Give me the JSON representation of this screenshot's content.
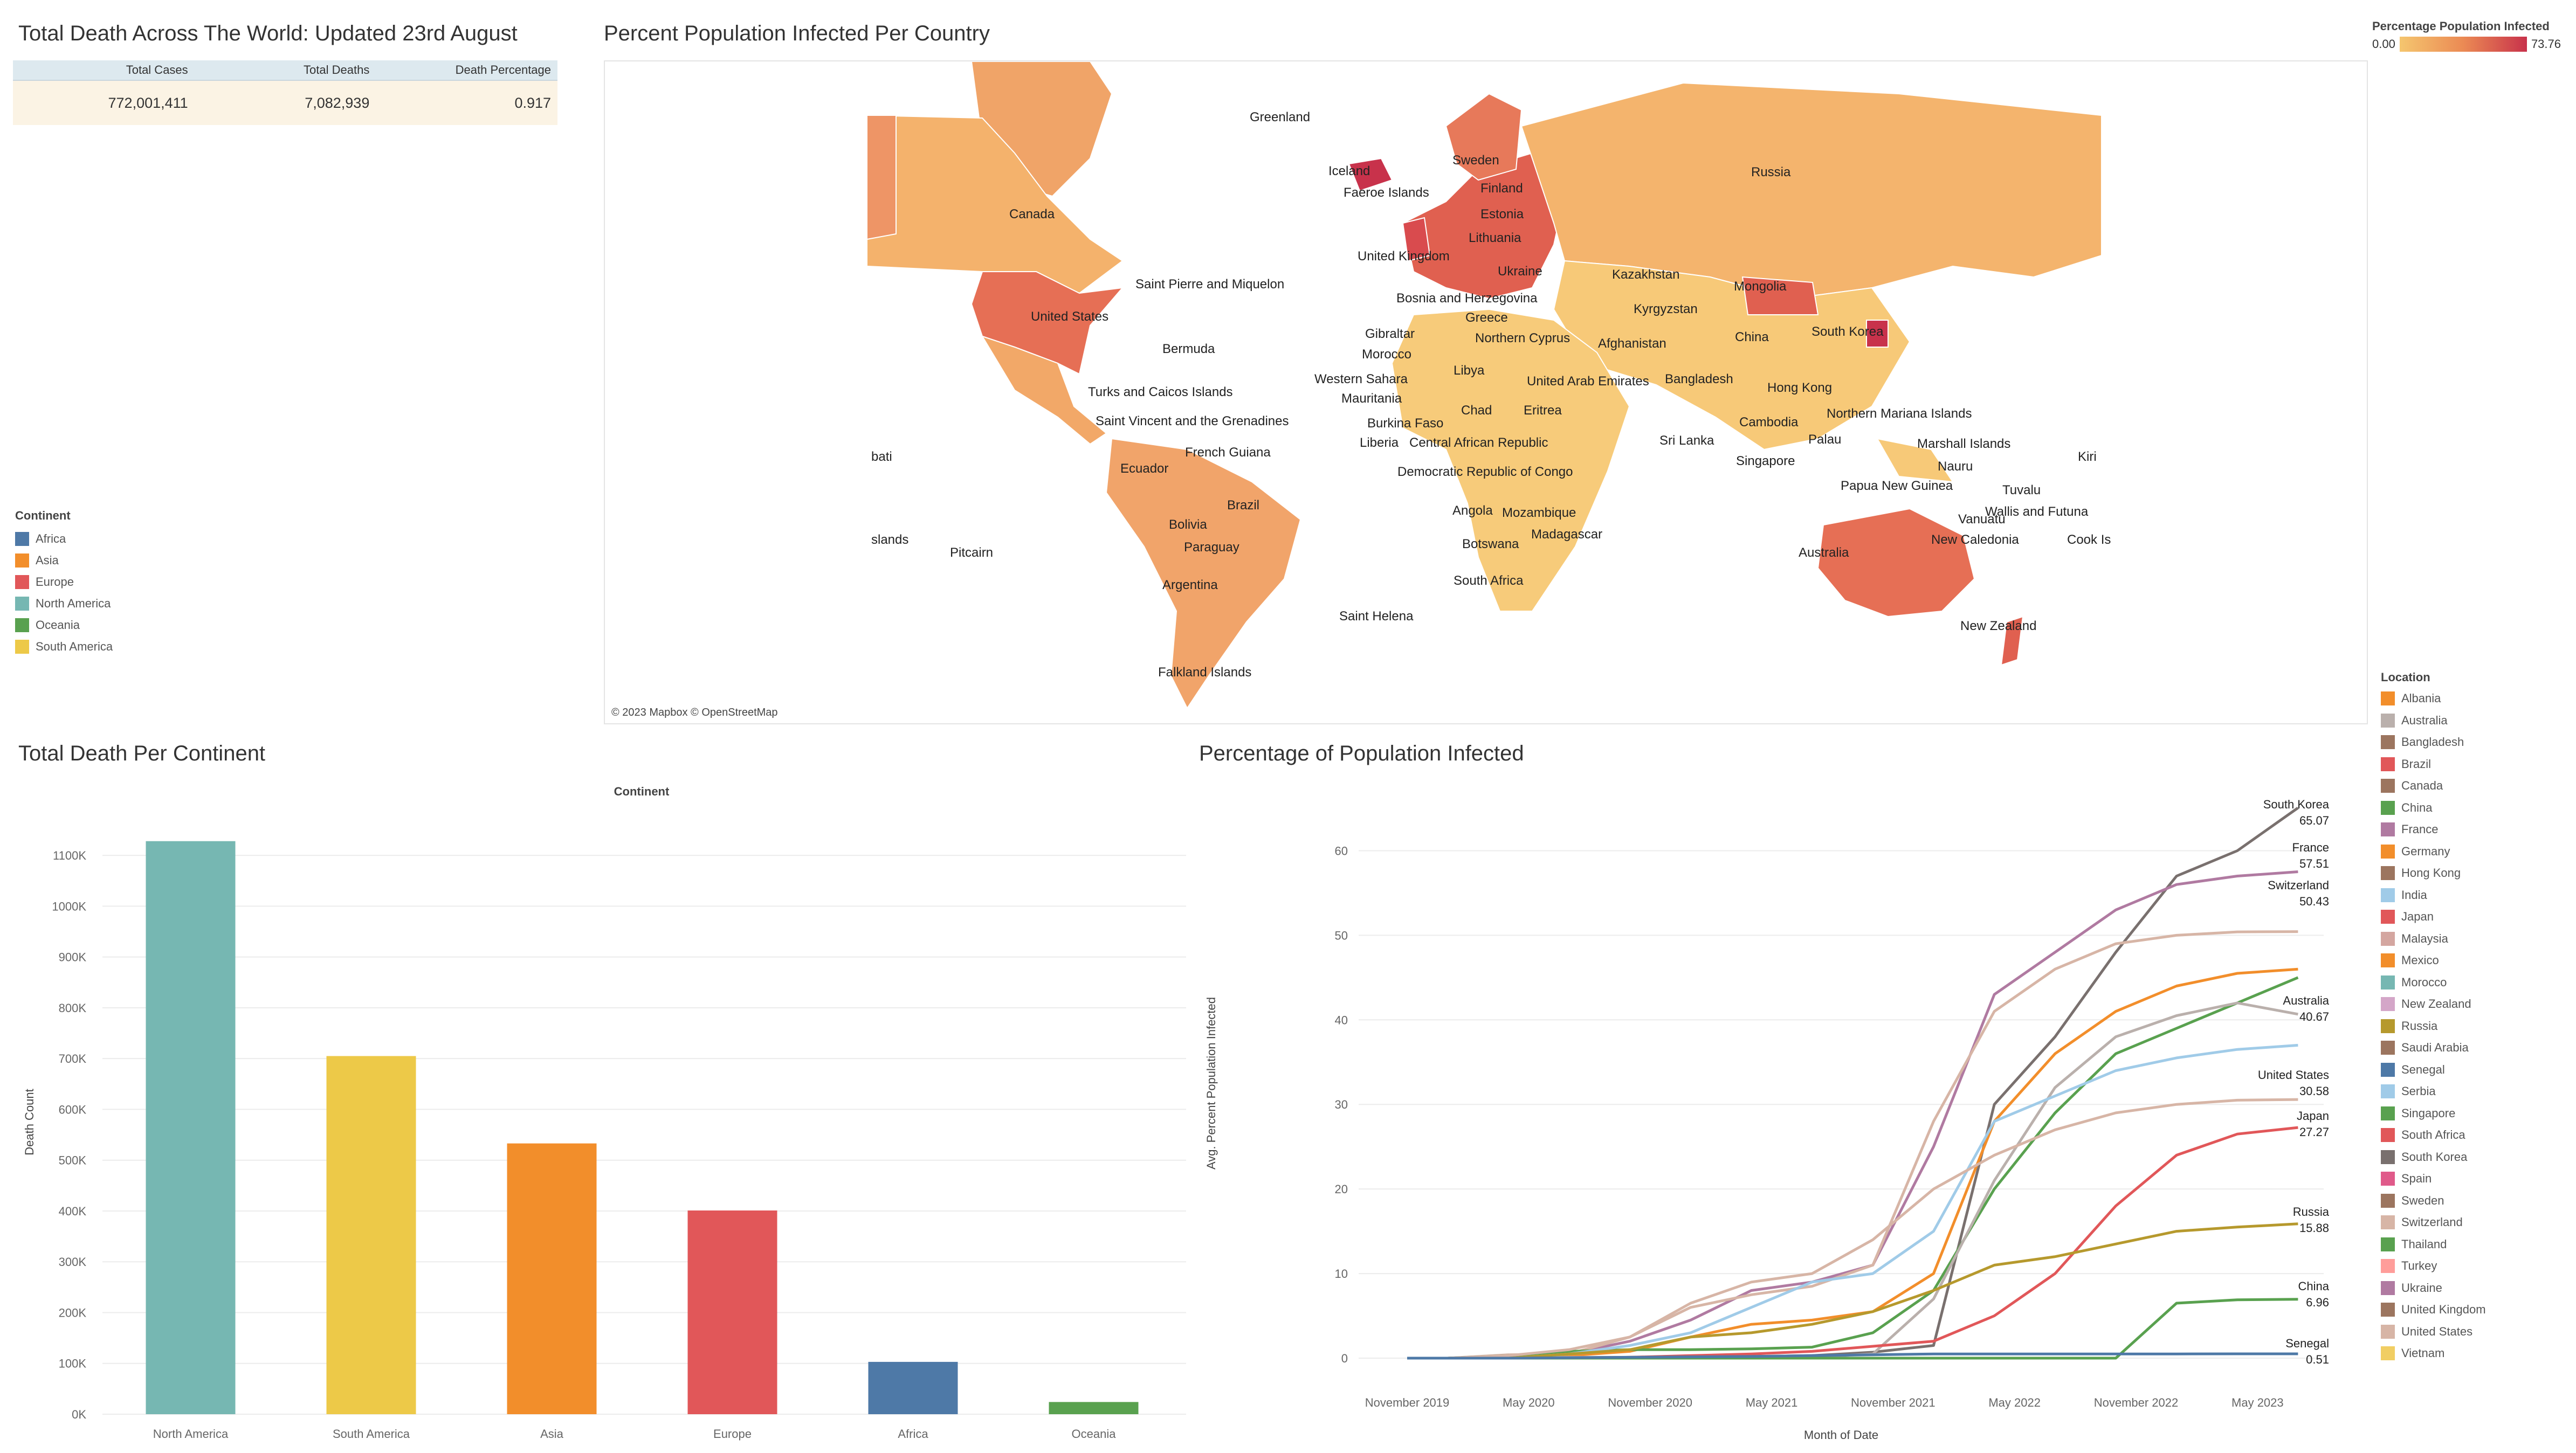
{
  "kpi": {
    "title": "Total Death Across The World: Updated 23rd August",
    "headers": [
      "Total Cases",
      "Total Deaths",
      "Death Percentage"
    ],
    "values": [
      "772,001,411",
      "7,082,939",
      "0.917"
    ]
  },
  "continent_legend": {
    "title": "Continent",
    "items": [
      {
        "label": "Africa",
        "color": "#4e79a7"
      },
      {
        "label": "Asia",
        "color": "#f28e2b"
      },
      {
        "label": "Europe",
        "color": "#e15759"
      },
      {
        "label": "North America",
        "color": "#76b7b2"
      },
      {
        "label": "Oceania",
        "color": "#59a14f"
      },
      {
        "label": "South America",
        "color": "#edc948"
      }
    ]
  },
  "map": {
    "title": "Percent Population Infected Per Country",
    "attribution": "© 2023 Mapbox © OpenStreetMap",
    "colorbar": {
      "title": "Percentage Population Infected",
      "min": "0.00",
      "max": "73.76"
    },
    "labels": [
      "Greenland",
      "Iceland",
      "Faeroe Islands",
      "Sweden",
      "Finland",
      "Estonia",
      "Lithuania",
      "Russia",
      "Canada",
      "United Kingdom",
      "Ukraine",
      "Kazakhstan",
      "Mongolia",
      "Saint Pierre and Miquelon",
      "Bosnia and Herzegovina",
      "Kyrgyzstan",
      "United States",
      "Greece",
      "Gibraltar",
      "Northern Cyprus",
      "Afghanistan",
      "China",
      "South Korea",
      "Bermuda",
      "Morocco",
      "Libya",
      "Western Sahara",
      "United Arab Emirates",
      "Bangladesh",
      "Hong Kong",
      "Turks and Caicos Islands",
      "Mauritania",
      "Chad",
      "Eritrea",
      "Northern Mariana Islands",
      "Saint Vincent and the Grenadines",
      "Burkina Faso",
      "Cambodia",
      "Liberia",
      "Central African Republic",
      "Sri Lanka",
      "Palau",
      "Marshall Islands",
      "French Guiana",
      "Singapore",
      "Nauru",
      "Kiri",
      "bati",
      "Ecuador",
      "Democratic Republic of Congo",
      "Papua New Guinea",
      "Tuvalu",
      "Brazil",
      "Angola",
      "Mozambique",
      "Vanuatu",
      "Wallis and Futuna",
      "slands",
      "Bolivia",
      "Madagascar",
      "New Caledonia",
      "Cook Is",
      "Pitcairn",
      "Paraguay",
      "Botswana",
      "Australia",
      "South Africa",
      "Argentina",
      "Saint Helena",
      "New Zealand",
      "Falkland Islands"
    ]
  },
  "bar_chart": {
    "title": "Total Death Per Continent",
    "column_header": "Continent",
    "ylabel": "Death Count",
    "y_ticks": [
      "0K",
      "100K",
      "200K",
      "300K",
      "400K",
      "500K",
      "600K",
      "700K",
      "800K",
      "900K",
      "1000K",
      "1100K"
    ]
  },
  "line_chart": {
    "title": "Percentage of Population Infected",
    "xlabel": "Month of Date",
    "ylabel": "Avg. Percent Population Infected",
    "x_ticks": [
      "November 2019",
      "May 2020",
      "November 2020",
      "May 2021",
      "November 2021",
      "May 2022",
      "November 2022",
      "May 2023"
    ],
    "y_ticks": [
      "0",
      "10",
      "20",
      "30",
      "40",
      "50",
      "60"
    ],
    "end_labels": [
      {
        "name": "South Korea",
        "value": "65.07"
      },
      {
        "name": "France",
        "value": "57.51"
      },
      {
        "name": "Switzerland",
        "value": "50.43"
      },
      {
        "name": "Australia",
        "value": "40.67"
      },
      {
        "name": "United States",
        "value": "30.58"
      },
      {
        "name": "Japan",
        "value": "27.27"
      },
      {
        "name": "Russia",
        "value": "15.88"
      },
      {
        "name": "China",
        "value": "6.96"
      },
      {
        "name": "Senegal",
        "value": "0.51"
      }
    ]
  },
  "location_legend": {
    "title": "Location",
    "items": [
      {
        "label": "Albania",
        "color": "#f28e2b"
      },
      {
        "label": "Australia",
        "color": "#bab0ac"
      },
      {
        "label": "Bangladesh",
        "color": "#9c755f"
      },
      {
        "label": "Brazil",
        "color": "#e15759"
      },
      {
        "label": "Canada",
        "color": "#9c755f"
      },
      {
        "label": "China",
        "color": "#59a14f"
      },
      {
        "label": "France",
        "color": "#b07aa1"
      },
      {
        "label": "Germany",
        "color": "#f28e2b"
      },
      {
        "label": "Hong Kong",
        "color": "#9c755f"
      },
      {
        "label": "India",
        "color": "#a0cbe8"
      },
      {
        "label": "Japan",
        "color": "#e15759"
      },
      {
        "label": "Malaysia",
        "color": "#d4a6a0"
      },
      {
        "label": "Mexico",
        "color": "#f28e2b"
      },
      {
        "label": "Morocco",
        "color": "#76b7b2"
      },
      {
        "label": "New Zealand",
        "color": "#d4a6c8"
      },
      {
        "label": "Russia",
        "color": "#b6992d"
      },
      {
        "label": "Saudi Arabia",
        "color": "#9c755f"
      },
      {
        "label": "Senegal",
        "color": "#4e79a7"
      },
      {
        "label": "Serbia",
        "color": "#a0cbe8"
      },
      {
        "label": "Singapore",
        "color": "#59a14f"
      },
      {
        "label": "South Africa",
        "color": "#e15759"
      },
      {
        "label": "South Korea",
        "color": "#79706e"
      },
      {
        "label": "Spain",
        "color": "#e05a8a"
      },
      {
        "label": "Sweden",
        "color": "#9c755f"
      },
      {
        "label": "Switzerland",
        "color": "#d7b5a6"
      },
      {
        "label": "Thailand",
        "color": "#59a14f"
      },
      {
        "label": "Turkey",
        "color": "#ff9d9a"
      },
      {
        "label": "Ukraine",
        "color": "#b07aa1"
      },
      {
        "label": "United Kingdom",
        "color": "#9c755f"
      },
      {
        "label": "United States",
        "color": "#d7b5a6"
      },
      {
        "label": "Vietnam",
        "color": "#f1ce63"
      }
    ]
  },
  "chart_data": [
    {
      "type": "bar",
      "title": "Total Death Per Continent",
      "xlabel": "Continent",
      "ylabel": "Death Count",
      "categories": [
        "North America",
        "South America",
        "Asia",
        "Europe",
        "Africa",
        "Oceania"
      ],
      "values": [
        1128000,
        705000,
        533000,
        401000,
        103000,
        24000
      ],
      "colors": [
        "#76b7b2",
        "#edc948",
        "#f28e2b",
        "#e15759",
        "#4e79a7",
        "#59a14f"
      ],
      "ylim": [
        0,
        1150000
      ]
    },
    {
      "type": "line",
      "title": "Percentage of Population Infected",
      "xlabel": "Month of Date",
      "ylabel": "Avg. Percent Population Infected",
      "x": [
        "2020-01",
        "2020-04",
        "2020-07",
        "2020-10",
        "2021-01",
        "2021-04",
        "2021-07",
        "2021-10",
        "2022-01",
        "2022-04",
        "2022-07",
        "2022-10",
        "2023-01",
        "2023-04",
        "2023-07"
      ],
      "ylim": [
        0,
        65
      ],
      "series": [
        {
          "name": "South Korea",
          "color": "#79706e",
          "values": [
            0,
            0,
            0,
            0.1,
            0.1,
            0.2,
            0.3,
            0.7,
            1.5,
            30,
            38,
            48,
            57,
            60,
            65.07
          ]
        },
        {
          "name": "France",
          "color": "#b07aa1",
          "values": [
            0,
            0.3,
            0.5,
            2,
            4.5,
            8,
            9,
            11,
            25,
            43,
            48,
            53,
            56,
            57,
            57.51
          ]
        },
        {
          "name": "Switzerland",
          "color": "#d7b5a6",
          "values": [
            0,
            0.4,
            0.5,
            2.5,
            6,
            7.5,
            8.5,
            11,
            28,
            41,
            46,
            49,
            50,
            50.4,
            50.43
          ]
        },
        {
          "name": "Germany",
          "color": "#f28e2b",
          "values": [
            0,
            0.2,
            0.3,
            0.8,
            2.5,
            4,
            4.5,
            5.5,
            10,
            28,
            36,
            41,
            44,
            45.5,
            46
          ]
        },
        {
          "name": "Singapore",
          "color": "#59a14f",
          "values": [
            0,
            0.3,
            0.8,
            1,
            1,
            1.1,
            1.3,
            3,
            8,
            20,
            29,
            36,
            39,
            42,
            45
          ]
        },
        {
          "name": "Australia",
          "color": "#bab0ac",
          "values": [
            0,
            0,
            0.1,
            0.1,
            0.1,
            0.1,
            0.1,
            0.5,
            7,
            21,
            32,
            38,
            40.5,
            42,
            40.67
          ]
        },
        {
          "name": "India",
          "color": "#a0cbe8",
          "values": [
            0,
            0,
            0.5,
            1.5,
            3,
            6,
            9,
            10,
            15,
            28,
            31,
            34,
            35.5,
            36.5,
            37
          ]
        },
        {
          "name": "United States",
          "color": "#d7b5a6",
          "values": [
            0,
            0.3,
            1,
            2.5,
            6.5,
            9,
            10,
            14,
            20,
            24,
            27,
            29,
            30,
            30.5,
            30.58
          ]
        },
        {
          "name": "Japan",
          "color": "#e15759",
          "values": [
            0,
            0,
            0,
            0.1,
            0.3,
            0.5,
            0.8,
            1.4,
            2,
            5,
            10,
            18,
            24,
            26.5,
            27.27
          ]
        },
        {
          "name": "Russia",
          "color": "#b6992d",
          "values": [
            0,
            0,
            0.5,
            1,
            2.5,
            3,
            4,
            5.5,
            8,
            11,
            12,
            13.5,
            15,
            15.5,
            15.88
          ]
        },
        {
          "name": "China",
          "color": "#59a14f",
          "values": [
            0,
            0,
            0,
            0,
            0,
            0,
            0,
            0,
            0,
            0,
            0,
            0,
            6.5,
            6.9,
            6.96
          ]
        },
        {
          "name": "Senegal",
          "color": "#4e79a7",
          "values": [
            0,
            0,
            0.05,
            0.1,
            0.15,
            0.2,
            0.3,
            0.4,
            0.5,
            0.5,
            0.5,
            0.5,
            0.5,
            0.51,
            0.51
          ]
        }
      ]
    }
  ]
}
